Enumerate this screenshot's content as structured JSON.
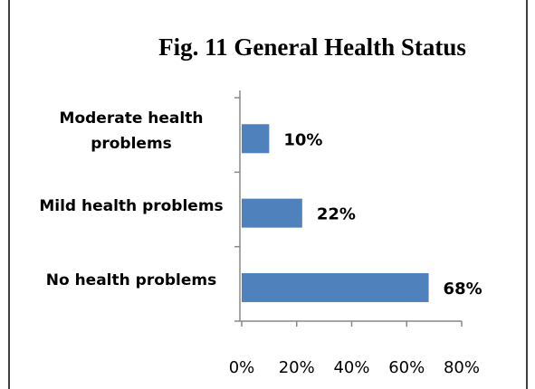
{
  "chart_data": {
    "type": "barh",
    "title": "Fig. 11 General Health Status",
    "categories": [
      "Moderate health problems",
      "Mild health problems",
      "No health problems"
    ],
    "values": [
      10,
      22,
      68
    ],
    "value_labels": [
      "10%",
      "22%",
      "68%"
    ],
    "color": "#4f81bd",
    "xlim": [
      0,
      80
    ],
    "xticks": [
      {
        "value": 0,
        "label": "0%"
      },
      {
        "value": 20,
        "label": "20%"
      },
      {
        "value": 40,
        "label": "40%"
      },
      {
        "value": 60,
        "label": "60%"
      },
      {
        "value": 80,
        "label": "80%"
      }
    ]
  }
}
